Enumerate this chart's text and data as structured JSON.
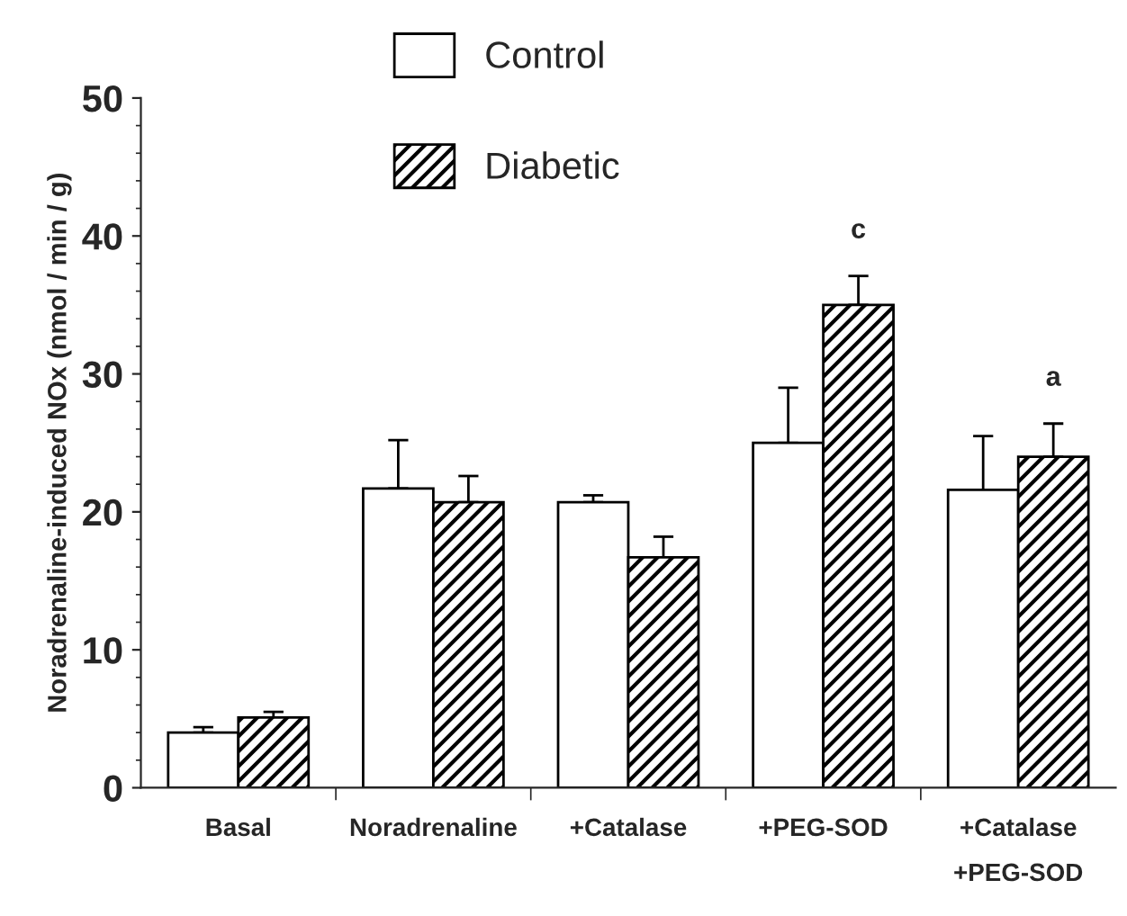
{
  "chart_data": {
    "type": "bar",
    "ylabel": "Noradrenaline-induced NOx (nmol / min / g)",
    "categories": [
      "Basal",
      "Noradrenaline",
      "+Catalase",
      "+PEG-SOD",
      "+Catalase\n+PEG-SOD"
    ],
    "series": [
      {
        "name": "Control",
        "color": "#ffffff",
        "values": [
          4.0,
          21.7,
          20.7,
          25.0,
          21.6
        ],
        "errors": [
          0.4,
          3.5,
          0.5,
          4.0,
          3.9
        ]
      },
      {
        "name": "Diabetic",
        "color": "#000000",
        "values": [
          5.1,
          20.7,
          16.7,
          35.0,
          24.0
        ],
        "errors": [
          0.4,
          1.9,
          1.5,
          2.1,
          2.4
        ]
      }
    ],
    "ylim": [
      0,
      50
    ],
    "yticks": [
      0,
      10,
      20,
      30,
      40,
      50
    ],
    "grid": false,
    "legend": "top",
    "annotations": [
      "c",
      "a"
    ]
  }
}
